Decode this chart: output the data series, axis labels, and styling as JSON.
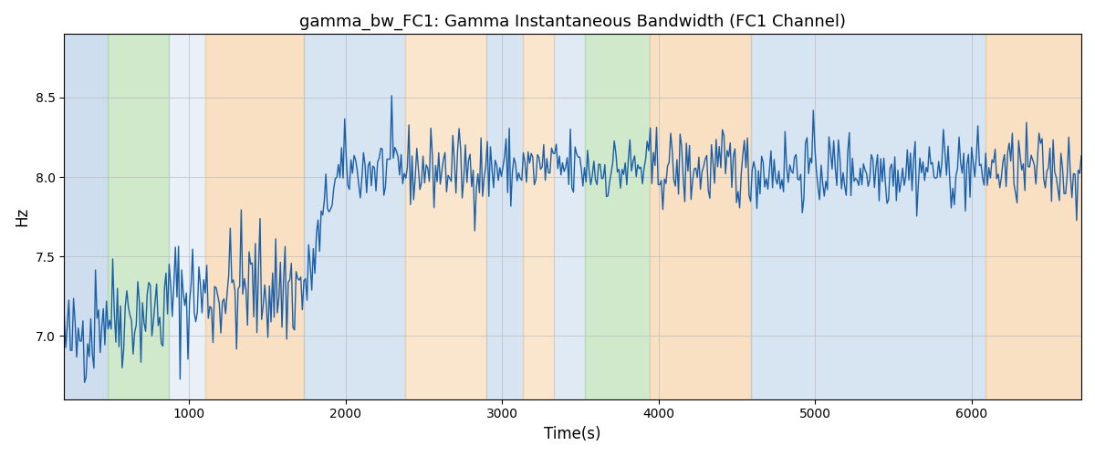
{
  "title": "gamma_bw_FC1: Gamma Instantaneous Bandwidth (FC1 Channel)",
  "xlabel": "Time(s)",
  "ylabel": "Hz",
  "xlim": [
    200,
    6700
  ],
  "ylim": [
    6.6,
    8.9
  ],
  "yticks": [
    7.0,
    7.5,
    8.0,
    8.5
  ],
  "line_color": "#1a5fa8",
  "line_width": 1.0,
  "bg_color": "#ffffff",
  "grid_color": "#bbbbbb",
  "colored_bands": [
    {
      "xmin": 200,
      "xmax": 480,
      "color": "#a8c4e0",
      "alpha": 0.55
    },
    {
      "xmin": 480,
      "xmax": 870,
      "color": "#a8d8a0",
      "alpha": 0.55
    },
    {
      "xmin": 870,
      "xmax": 1100,
      "color": "#a8c4e0",
      "alpha": 0.25
    },
    {
      "xmin": 1100,
      "xmax": 1730,
      "color": "#f5c890",
      "alpha": 0.55
    },
    {
      "xmin": 1730,
      "xmax": 2380,
      "color": "#a8c4e0",
      "alpha": 0.45
    },
    {
      "xmin": 2380,
      "xmax": 2900,
      "color": "#f5c890",
      "alpha": 0.45
    },
    {
      "xmin": 2900,
      "xmax": 3130,
      "color": "#a8c4e0",
      "alpha": 0.45
    },
    {
      "xmin": 3130,
      "xmax": 3330,
      "color": "#f5c890",
      "alpha": 0.45
    },
    {
      "xmin": 3330,
      "xmax": 3530,
      "color": "#a8c4e0",
      "alpha": 0.35
    },
    {
      "xmin": 3530,
      "xmax": 3940,
      "color": "#a8d8a0",
      "alpha": 0.55
    },
    {
      "xmin": 3940,
      "xmax": 4590,
      "color": "#f5c890",
      "alpha": 0.55
    },
    {
      "xmin": 4590,
      "xmax": 6090,
      "color": "#a8c4e0",
      "alpha": 0.45
    },
    {
      "xmin": 6090,
      "xmax": 6700,
      "color": "#f5c890",
      "alpha": 0.55
    }
  ],
  "seed": 42,
  "n_points": 650
}
